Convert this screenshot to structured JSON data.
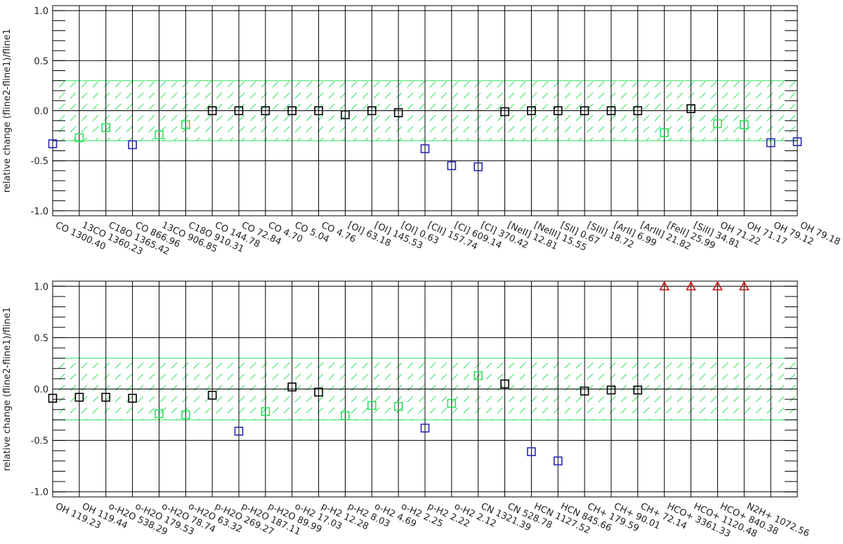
{
  "chart_data": [
    {
      "type": "scatter",
      "ylabel": "relative change (fline2-fline1)/fline1",
      "categories": [
        "CO 1300.40",
        "13CO 1360.23",
        "C18O 1365.42",
        "CO 866.96",
        "13CO 906.85",
        "C18O 910.31",
        "CO 144.78",
        "CO 72.84",
        "CO 4.70",
        "CO 5.04",
        "CO 4.76",
        "[OI] 63.18",
        "[OI] 145.53",
        "[OI] 0.63",
        "[CII] 157.74",
        "[CI] 609.14",
        "[CI] 370.42",
        "[NeII] 12.81",
        "[NeIII] 15.55",
        "[SII] 0.67",
        "[SIII] 18.72",
        "[ArII] 6.99",
        "[ArIII] 21.82",
        "[FeII] 25.99",
        "[SiII] 34.81",
        "OH 71.22",
        "OH 71.17",
        "OH 79.12",
        "OH 79.18"
      ],
      "values": [
        -0.33,
        -0.27,
        -0.17,
        -0.34,
        -0.24,
        -0.14,
        0.0,
        0.0,
        0.0,
        0.0,
        0.0,
        -0.04,
        0.0,
        -0.02,
        -0.38,
        -0.55,
        -0.56,
        -0.01,
        0.0,
        0.0,
        0.0,
        0.0,
        0.0,
        -0.22,
        0.02,
        -0.13,
        -0.14,
        -0.32,
        -0.31
      ],
      "colors": [
        "#2828b8",
        "#30e060",
        "#30e060",
        "#2828b8",
        "#30e060",
        "#30e060",
        "#000000",
        "#000000",
        "#000000",
        "#000000",
        "#000000",
        "#000000",
        "#000000",
        "#000000",
        "#2828b8",
        "#2828b8",
        "#2828b8",
        "#000000",
        "#000000",
        "#000000",
        "#000000",
        "#000000",
        "#000000",
        "#30e060",
        "#000000",
        "#30e060",
        "#30e060",
        "#2828b8",
        "#2828b8"
      ],
      "markers": [
        "square",
        "square",
        "square",
        "square",
        "square",
        "square",
        "square",
        "square",
        "square",
        "square",
        "square",
        "square",
        "square",
        "square",
        "square",
        "square",
        "square",
        "square",
        "square",
        "square",
        "square",
        "square",
        "square",
        "square",
        "square",
        "square",
        "square",
        "square",
        "square"
      ],
      "band": [
        -0.3,
        0.3
      ],
      "band_color": "#30e060",
      "ylim": [
        -1.05,
        1.05
      ],
      "yticks": [
        {
          "value": -1,
          "label": "-1.0"
        },
        {
          "value": -0.5,
          "label": "-0.5"
        },
        {
          "value": 0,
          "label": "0.0"
        },
        {
          "value": 0.5,
          "label": "0.5"
        },
        {
          "value": 1,
          "label": "1.0"
        }
      ],
      "grid": true
    },
    {
      "type": "scatter",
      "ylabel": "relative change (fline2-fline1)/fline1",
      "categories": [
        "OH 119.23",
        "OH 119.44",
        "o-H2O 538.29",
        "o-H2O 179.53",
        "o-H2O 78.74",
        "o-H2O 63.32",
        "p-H2O 269.27",
        "p-H2O 187.11",
        "p-H2O 89.99",
        "o-H2 17.03",
        "p-H2 12.28",
        "p-H2 8.03",
        "o-H2 4.69",
        "o-H2 2.25",
        "p-H2 2.22",
        "o-H2 2.12",
        "CN 1321.39",
        "CN 528.78",
        "HCN 1127.52",
        "HCN 845.66",
        "CH+ 179.59",
        "CH+ 90.01",
        "CH+ 72.14",
        "HCO+ 3361.33",
        "HCO+ 1120.48",
        "HCO+ 840.38",
        "N2H+ 1072.56",
        null,
        null
      ],
      "values": [
        -0.09,
        -0.08,
        -0.08,
        -0.09,
        -0.24,
        -0.25,
        -0.06,
        -0.41,
        -0.22,
        0.02,
        -0.03,
        -0.26,
        -0.16,
        -0.17,
        -0.38,
        -0.14,
        0.13,
        0.05,
        -0.61,
        -0.7,
        -0.02,
        -0.01,
        -0.01,
        1.0,
        1.0,
        1.0,
        1.0,
        null,
        null
      ],
      "colors": [
        "#000000",
        "#000000",
        "#000000",
        "#000000",
        "#30e060",
        "#30e060",
        "#000000",
        "#2828b8",
        "#30e060",
        "#000000",
        "#000000",
        "#30e060",
        "#30e060",
        "#30e060",
        "#2828b8",
        "#30e060",
        "#30e060",
        "#000000",
        "#2828b8",
        "#2828b8",
        "#000000",
        "#000000",
        "#000000",
        "#d01818",
        "#d01818",
        "#d01818",
        "#d01818",
        null,
        null
      ],
      "markers": [
        "square",
        "square",
        "square",
        "square",
        "square",
        "square",
        "square",
        "square",
        "square",
        "square",
        "square",
        "square",
        "square",
        "square",
        "square",
        "square",
        "square",
        "square",
        "square",
        "square",
        "square",
        "square",
        "square",
        "triangle",
        "triangle",
        "triangle",
        "triangle",
        null,
        null
      ],
      "band": [
        -0.3,
        0.3
      ],
      "band_color": "#30e060",
      "ylim": [
        -1.05,
        1.05
      ],
      "yticks": [
        {
          "value": -1,
          "label": "-1.0"
        },
        {
          "value": -0.5,
          "label": "-0.5"
        },
        {
          "value": 0,
          "label": "0.0"
        },
        {
          "value": 0.5,
          "label": "0.5"
        },
        {
          "value": 1,
          "label": "1.0"
        }
      ],
      "grid": true
    }
  ]
}
